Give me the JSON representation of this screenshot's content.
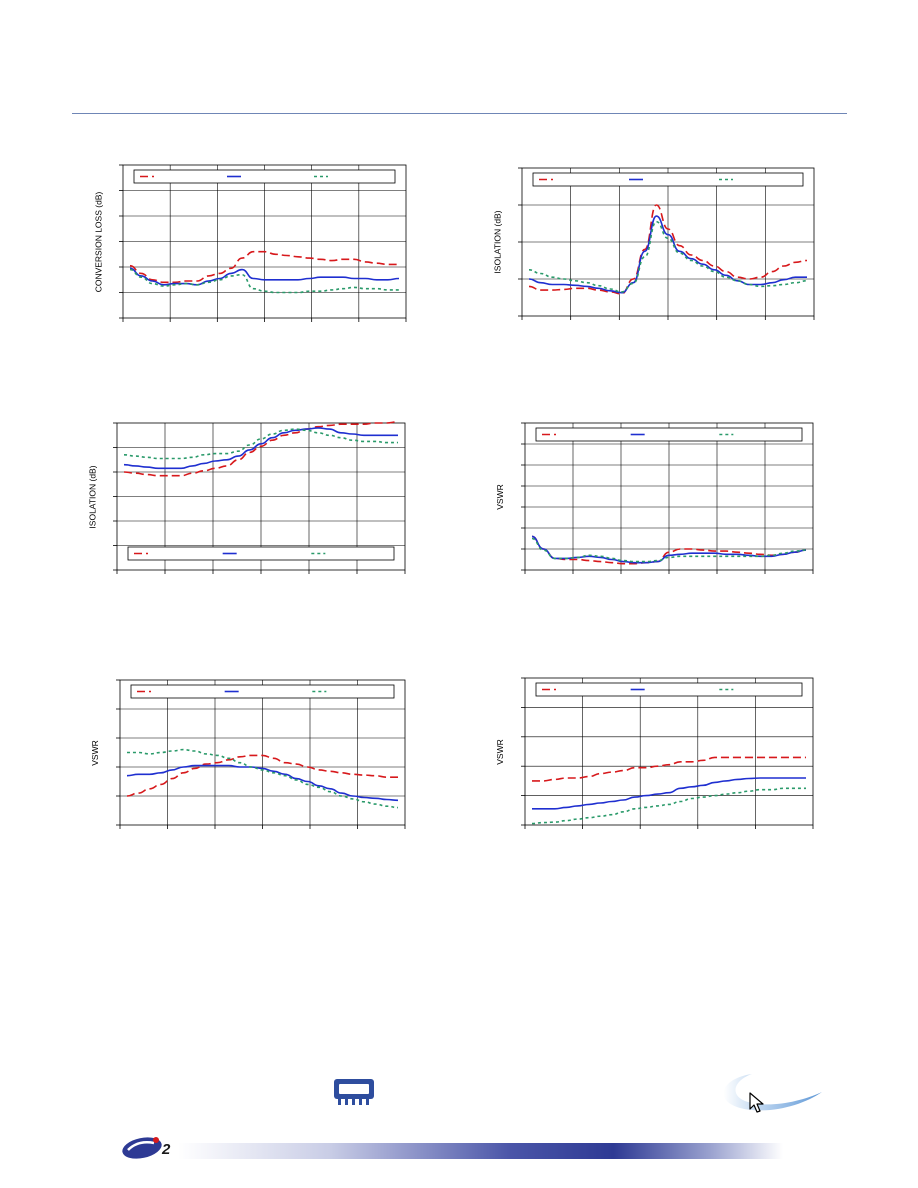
{
  "charts": [
    {
      "id": "c1",
      "ylabel": "CONVERSION LOSS (dB)",
      "legend_pos": "top",
      "grid": true,
      "chart_data": {
        "type": "line",
        "x": [
          0,
          1,
          2,
          3,
          4,
          5,
          6,
          7,
          8,
          9,
          10,
          11,
          12,
          13,
          14,
          15,
          16,
          17,
          18,
          19,
          20,
          21,
          22,
          23,
          24
        ],
        "ylim": [
          0,
          6
        ],
        "series": [
          {
            "color": "#d7191c",
            "dash": "8,4",
            "values": [
              2.05,
              1.75,
              1.5,
              1.4,
              1.4,
              1.45,
              1.45,
              1.65,
              1.75,
              1.95,
              2.35,
              2.6,
              2.6,
              2.5,
              2.45,
              2.4,
              2.35,
              2.3,
              2.25,
              2.3,
              2.3,
              2.2,
              2.15,
              2.1,
              2.1
            ]
          },
          {
            "color": "#1f2fd0",
            "dash": "",
            "values": [
              1.95,
              1.65,
              1.45,
              1.3,
              1.35,
              1.35,
              1.3,
              1.45,
              1.55,
              1.75,
              1.9,
              1.55,
              1.5,
              1.5,
              1.5,
              1.5,
              1.55,
              1.6,
              1.6,
              1.6,
              1.55,
              1.55,
              1.5,
              1.5,
              1.55
            ]
          },
          {
            "color": "#2a9a6a",
            "dash": "3,3",
            "values": [
              1.9,
              1.6,
              1.35,
              1.25,
              1.3,
              1.35,
              1.3,
              1.4,
              1.5,
              1.65,
              1.7,
              1.15,
              1.05,
              1.0,
              1.0,
              1.0,
              1.05,
              1.05,
              1.1,
              1.15,
              1.2,
              1.15,
              1.15,
              1.1,
              1.1
            ]
          }
        ]
      }
    },
    {
      "id": "c2",
      "ylabel": "ISOLATION (dB)",
      "legend_pos": "top",
      "grid": true,
      "chart_data": {
        "type": "line",
        "x": [
          0,
          1,
          2,
          3,
          4,
          5,
          6,
          7,
          8,
          9,
          10,
          11,
          12,
          13,
          14,
          15,
          16,
          17,
          18,
          19,
          20,
          21,
          22,
          23,
          24
        ],
        "ylim": [
          0,
          4
        ],
        "series": [
          {
            "color": "#d7191c",
            "dash": "8,4",
            "values": [
              0.8,
              0.7,
              0.7,
              0.72,
              0.75,
              0.75,
              0.7,
              0.65,
              0.6,
              1.0,
              1.8,
              3.0,
              2.35,
              1.9,
              1.65,
              1.5,
              1.35,
              1.2,
              1.05,
              1.0,
              1.05,
              1.2,
              1.35,
              1.45,
              1.5
            ]
          },
          {
            "color": "#1f2fd0",
            "dash": "",
            "values": [
              1.0,
              0.9,
              0.85,
              0.85,
              0.83,
              0.8,
              0.75,
              0.68,
              0.63,
              0.9,
              1.75,
              2.7,
              2.2,
              1.75,
              1.55,
              1.4,
              1.25,
              1.1,
              0.95,
              0.85,
              0.85,
              0.9,
              0.98,
              1.05,
              1.05
            ]
          },
          {
            "color": "#2a9a6a",
            "dash": "3,3",
            "values": [
              1.25,
              1.15,
              1.05,
              1.0,
              0.95,
              0.9,
              0.82,
              0.73,
              0.65,
              0.88,
              1.6,
              2.55,
              2.1,
              1.7,
              1.5,
              1.35,
              1.2,
              1.05,
              0.95,
              0.85,
              0.8,
              0.82,
              0.85,
              0.9,
              0.95
            ]
          }
        ]
      }
    },
    {
      "id": "c3",
      "ylabel": "ISOLATION (dB)",
      "legend_pos": "bottom",
      "grid": true,
      "chart_data": {
        "type": "line",
        "x": [
          0,
          1,
          2,
          3,
          4,
          5,
          6,
          7,
          8,
          9,
          10,
          11,
          12,
          13,
          14,
          15,
          16,
          17,
          18,
          19,
          20,
          21,
          22,
          23,
          24
        ],
        "ylim": [
          0,
          6
        ],
        "series": [
          {
            "color": "#d7191c",
            "dash": "8,4",
            "values": [
              4.0,
              3.95,
              3.9,
              3.85,
              3.85,
              3.85,
              3.95,
              4.05,
              4.15,
              4.25,
              4.5,
              4.8,
              5.05,
              5.3,
              5.5,
              5.6,
              5.75,
              5.85,
              5.9,
              5.95,
              5.95,
              5.95,
              6.0,
              6.0,
              6.05
            ]
          },
          {
            "color": "#1f2fd0",
            "dash": "",
            "values": [
              4.3,
              4.25,
              4.2,
              4.15,
              4.15,
              4.15,
              4.25,
              4.35,
              4.45,
              4.5,
              4.65,
              4.9,
              5.15,
              5.4,
              5.6,
              5.7,
              5.75,
              5.8,
              5.75,
              5.6,
              5.55,
              5.5,
              5.5,
              5.5,
              5.5
            ]
          },
          {
            "color": "#2a9a6a",
            "dash": "3,3",
            "values": [
              4.7,
              4.65,
              4.6,
              4.55,
              4.55,
              4.55,
              4.6,
              4.7,
              4.75,
              4.75,
              4.85,
              5.1,
              5.35,
              5.55,
              5.7,
              5.75,
              5.7,
              5.6,
              5.5,
              5.4,
              5.3,
              5.25,
              5.25,
              5.2,
              5.2
            ]
          }
        ]
      }
    },
    {
      "id": "c4",
      "ylabel": "VSWR",
      "legend_pos": "top",
      "grid": true,
      "chart_data": {
        "type": "line",
        "x": [
          0,
          1,
          2,
          3,
          4,
          5,
          6,
          7,
          8,
          9,
          10,
          11,
          12,
          13,
          14,
          15,
          16,
          17,
          18,
          19,
          20,
          21,
          22,
          23,
          24
        ],
        "ylim": [
          0,
          7
        ],
        "series": [
          {
            "color": "#d7191c",
            "dash": "8,4",
            "values": [
              1.6,
              1.0,
              0.55,
              0.5,
              0.5,
              0.45,
              0.4,
              0.35,
              0.3,
              0.3,
              0.35,
              0.4,
              0.85,
              1.0,
              1.0,
              0.95,
              0.9,
              0.9,
              0.85,
              0.8,
              0.75,
              0.7,
              0.75,
              0.85,
              0.95
            ]
          },
          {
            "color": "#1f2fd0",
            "dash": "",
            "values": [
              1.6,
              1.0,
              0.55,
              0.55,
              0.6,
              0.65,
              0.6,
              0.5,
              0.4,
              0.35,
              0.35,
              0.4,
              0.7,
              0.75,
              0.8,
              0.8,
              0.8,
              0.75,
              0.75,
              0.7,
              0.65,
              0.65,
              0.75,
              0.85,
              0.95
            ]
          },
          {
            "color": "#2a9a6a",
            "dash": "3,3",
            "values": [
              1.5,
              0.95,
              0.55,
              0.55,
              0.6,
              0.7,
              0.65,
              0.55,
              0.45,
              0.4,
              0.4,
              0.45,
              0.6,
              0.65,
              0.65,
              0.65,
              0.65,
              0.65,
              0.65,
              0.65,
              0.65,
              0.7,
              0.8,
              0.9,
              0.95
            ]
          }
        ]
      }
    },
    {
      "id": "c5",
      "ylabel": "VSWR",
      "legend_pos": "top",
      "grid": true,
      "chart_data": {
        "type": "line",
        "x": [
          0,
          1,
          2,
          3,
          4,
          5,
          6,
          7,
          8,
          9,
          10,
          11,
          12,
          13,
          14,
          15,
          16,
          17,
          18,
          19,
          20,
          21,
          22,
          23,
          24
        ],
        "ylim": [
          0,
          5
        ],
        "series": [
          {
            "color": "#d7191c",
            "dash": "8,4",
            "values": [
              1.0,
              1.1,
              1.25,
              1.4,
              1.6,
              1.8,
              1.95,
              2.1,
              2.15,
              2.25,
              2.35,
              2.4,
              2.4,
              2.3,
              2.15,
              2.1,
              2.0,
              1.9,
              1.85,
              1.8,
              1.75,
              1.72,
              1.7,
              1.65,
              1.65
            ]
          },
          {
            "color": "#1f2fd0",
            "dash": "",
            "values": [
              1.7,
              1.75,
              1.75,
              1.8,
              1.9,
              2.0,
              2.05,
              2.05,
              2.05,
              2.05,
              2.0,
              2.0,
              1.95,
              1.85,
              1.75,
              1.6,
              1.5,
              1.35,
              1.25,
              1.1,
              1.0,
              0.95,
              0.92,
              0.88,
              0.85
            ]
          },
          {
            "color": "#2a9a6a",
            "dash": "3,3",
            "values": [
              2.5,
              2.5,
              2.45,
              2.5,
              2.55,
              2.6,
              2.55,
              2.45,
              2.4,
              2.3,
              2.15,
              2.0,
              1.9,
              1.8,
              1.7,
              1.55,
              1.4,
              1.3,
              1.15,
              1.0,
              0.9,
              0.8,
              0.72,
              0.65,
              0.6
            ]
          }
        ]
      }
    },
    {
      "id": "c6",
      "ylabel": "VSWR",
      "legend_pos": "top",
      "grid": true,
      "chart_data": {
        "type": "line",
        "x": [
          0,
          1,
          2,
          3,
          4,
          5,
          6,
          7,
          8,
          9,
          10,
          11,
          12,
          13,
          14,
          15,
          16,
          17,
          18,
          19,
          20,
          21,
          22,
          23,
          24
        ],
        "ylim": [
          0,
          5
        ],
        "series": [
          {
            "color": "#d7191c",
            "dash": "8,4",
            "values": [
              1.5,
              1.5,
              1.55,
              1.6,
              1.6,
              1.65,
              1.75,
              1.8,
              1.85,
              1.95,
              1.95,
              2.0,
              2.05,
              2.15,
              2.15,
              2.2,
              2.3,
              2.3,
              2.3,
              2.3,
              2.3,
              2.3,
              2.3,
              2.3,
              2.3
            ]
          },
          {
            "color": "#1f2fd0",
            "dash": "",
            "values": [
              0.55,
              0.55,
              0.55,
              0.6,
              0.65,
              0.7,
              0.75,
              0.8,
              0.85,
              0.95,
              1.0,
              1.05,
              1.1,
              1.25,
              1.3,
              1.35,
              1.45,
              1.5,
              1.55,
              1.58,
              1.6,
              1.6,
              1.6,
              1.6,
              1.6
            ]
          },
          {
            "color": "#2a9a6a",
            "dash": "3,3",
            "values": [
              0.05,
              0.08,
              0.1,
              0.15,
              0.2,
              0.25,
              0.3,
              0.35,
              0.45,
              0.55,
              0.6,
              0.65,
              0.7,
              0.8,
              0.9,
              0.95,
              1.0,
              1.05,
              1.1,
              1.15,
              1.2,
              1.2,
              1.25,
              1.25,
              1.25
            ]
          }
        ]
      }
    }
  ],
  "footer": {
    "logo_mark": "2",
    "colors": {
      "brand_blue": "#2e3a94",
      "rule": "#6f86b6"
    },
    "icons": [
      "chip-icon",
      "cursor-icon",
      "company-logo"
    ]
  }
}
